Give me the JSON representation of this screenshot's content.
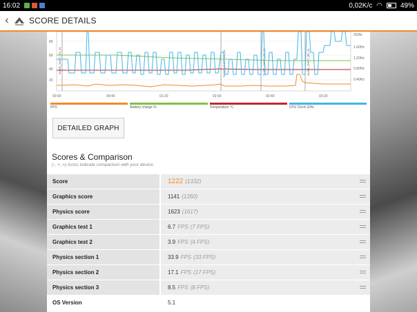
{
  "status_bar": {
    "time": "16:02",
    "net_speed": "0,02K/c",
    "battery": "49%"
  },
  "app_bar": {
    "title": "SCORE DETAILS"
  },
  "chart": {
    "y_ticks_left": [
      "80",
      "60",
      "40",
      "20"
    ],
    "y_ticks_right": [
      "2GHz",
      "1.60Hz",
      "1.20Hz",
      "0.80Hz",
      "0.40Hz"
    ],
    "x_ticks": [
      "00:00",
      "00:40",
      "01:20",
      "02:00",
      "02:40",
      "03:20"
    ],
    "markers": [
      "SLING_SHOT_ES_31",
      "SLING_SHOT_ES_31",
      "SLING_SHOT_ES_31",
      "SLING_SHOT_ES_31"
    ],
    "legend": [
      {
        "label": "FPS",
        "color": "#f08a24"
      },
      {
        "label": "Battery charge %",
        "color": "#7dc243"
      },
      {
        "label": "Temperature °C",
        "color": "#c0282e"
      },
      {
        "label": "CPU Clock GHz",
        "color": "#3fb6e5"
      }
    ]
  },
  "detailed_graph_label": "DETAILED GRAPH",
  "scores_section": {
    "title": "Scores & Comparison",
    "subtitle": "(-, +, =) Icons indicate comparison with your device."
  },
  "rows": [
    {
      "label": "Score",
      "value": "1222",
      "compare": "(1332)"
    },
    {
      "label": "Graphics score",
      "value": "1141",
      "compare": "(1260)"
    },
    {
      "label": "Physics score",
      "value": "1623",
      "compare": "(1617)"
    },
    {
      "label": "Graphics test 1",
      "value": "6.7",
      "unit": "FPS",
      "compare": "(7 FPS)"
    },
    {
      "label": "Graphics test 2",
      "value": "3.9",
      "unit": "FPS",
      "compare": "(4 FPS)"
    },
    {
      "label": "Physics section 1",
      "value": "33.9",
      "unit": "FPS",
      "compare": "(33 FPS)"
    },
    {
      "label": "Physics section 2",
      "value": "17.1",
      "unit": "FPS",
      "compare": "(17 FPS)"
    },
    {
      "label": "Physics section 3",
      "value": "8.5",
      "unit": "FPS",
      "compare": "(8 FPS)"
    },
    {
      "label": "OS Version",
      "value": "5.1"
    }
  ]
}
